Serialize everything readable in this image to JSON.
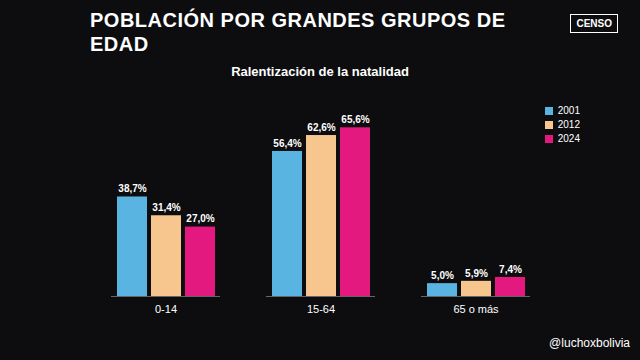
{
  "chart_data": {
    "type": "bar",
    "title": "POBLACIÓN POR GRANDES GRUPOS DE EDAD",
    "subtitle": "Ralentización de la natalidad",
    "annotations": [
      "CENSO",
      "@luchoxbolivia"
    ],
    "categories": [
      "0-14",
      "15-64",
      "65 o más"
    ],
    "series": [
      {
        "name": "2001",
        "color": "#5ab4e2",
        "values": [
          38.7,
          56.4,
          5.0
        ],
        "value_labels": [
          "38,7%",
          "56,4%",
          "5,0%"
        ]
      },
      {
        "name": "2012",
        "color": "#f6c68e",
        "values": [
          31.4,
          62.6,
          5.9
        ],
        "value_labels": [
          "31,4%",
          "62,6%",
          "5,9%"
        ]
      },
      {
        "name": "2024",
        "color": "#e3197f",
        "values": [
          27.0,
          65.6,
          7.4
        ],
        "value_labels": [
          "27,0%",
          "65,6%",
          "7,4%"
        ]
      }
    ],
    "ylim": [
      0,
      70
    ],
    "data_labels": true,
    "tick_labels": "x",
    "legend": "right"
  }
}
